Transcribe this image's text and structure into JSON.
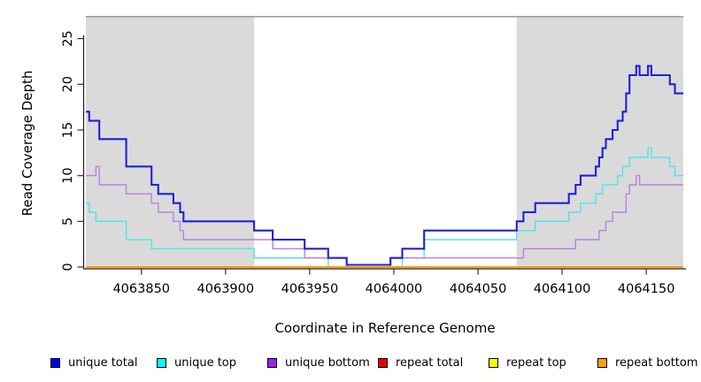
{
  "figure": {
    "x_axis_label": "Coordinate in Reference Genome",
    "y_axis_label": "Read Coverage Depth"
  },
  "legend": {
    "items": [
      {
        "label": "unique total",
        "color": "#0000EE"
      },
      {
        "label": "unique top",
        "color": "#00FFFF"
      },
      {
        "label": "unique bottom",
        "color": "#A020F0"
      },
      {
        "label": "repeat total",
        "color": "#E60000"
      },
      {
        "label": "repeat top",
        "color": "#FFFF00"
      },
      {
        "label": "repeat bottom",
        "color": "#FFA405"
      }
    ]
  },
  "chart_data": {
    "type": "line",
    "subtype": "step",
    "title": "",
    "xlabel": "Coordinate in Reference Genome",
    "ylabel": "Read Coverage Depth",
    "xlim": [
      4063817,
      4064172
    ],
    "ylim": [
      0,
      27.5
    ],
    "x_ticks": [
      4063850,
      4063900,
      4063950,
      4064000,
      4064050,
      4064100,
      4064150
    ],
    "y_ticks": [
      0,
      5,
      10,
      15,
      20,
      25
    ],
    "grid": false,
    "legend_position": "bottom",
    "shaded_regions": [
      {
        "x0": 4063817,
        "x1": 4063917,
        "color": "#DADADA"
      },
      {
        "x0": 4064073,
        "x1": 4064172,
        "color": "#DADADA"
      }
    ],
    "top_line": {
      "y": 27.4,
      "color": "#8E8E8E"
    },
    "series": [
      {
        "name": "unique total",
        "color": "#2020D5",
        "width": 2.1,
        "lift_zero": true,
        "steps": [
          [
            4063817,
            17
          ],
          [
            4063819,
            16
          ],
          [
            4063825,
            14
          ],
          [
            4063841,
            11
          ],
          [
            4063856,
            9
          ],
          [
            4063860,
            8
          ],
          [
            4063869,
            7
          ],
          [
            4063873,
            6
          ],
          [
            4063875,
            5
          ],
          [
            4063917,
            4
          ],
          [
            4063928,
            3
          ],
          [
            4063947,
            2
          ],
          [
            4063961,
            1
          ],
          [
            4063972,
            0
          ],
          [
            4063998,
            1
          ],
          [
            4064005,
            2
          ],
          [
            4064018,
            4
          ],
          [
            4064073,
            5
          ],
          [
            4064077,
            6
          ],
          [
            4064084,
            7
          ],
          [
            4064104,
            8
          ],
          [
            4064108,
            9
          ],
          [
            4064111,
            10
          ],
          [
            4064120,
            11
          ],
          [
            4064122,
            12
          ],
          [
            4064124,
            13
          ],
          [
            4064126,
            14
          ],
          [
            4064130,
            15
          ],
          [
            4064133,
            16
          ],
          [
            4064136,
            17
          ],
          [
            4064138,
            19
          ],
          [
            4064140,
            21
          ],
          [
            4064144,
            22
          ],
          [
            4064146,
            21
          ],
          [
            4064151,
            22
          ],
          [
            4064153,
            21
          ],
          [
            4064164,
            20
          ],
          [
            4064167,
            19
          ]
        ]
      },
      {
        "name": "unique top",
        "color": "#53E4E9",
        "width": 1.5,
        "lift_zero": false,
        "steps": [
          [
            4063817,
            7
          ],
          [
            4063819,
            6
          ],
          [
            4063823,
            5
          ],
          [
            4063841,
            3
          ],
          [
            4063856,
            2
          ],
          [
            4063917,
            1
          ],
          [
            4063961,
            0
          ],
          [
            4064005,
            1
          ],
          [
            4064018,
            3
          ],
          [
            4064073,
            4
          ],
          [
            4064084,
            5
          ],
          [
            4064104,
            6
          ],
          [
            4064111,
            7
          ],
          [
            4064120,
            8
          ],
          [
            4064124,
            9
          ],
          [
            4064133,
            10
          ],
          [
            4064136,
            11
          ],
          [
            4064140,
            12
          ],
          [
            4064151,
            13
          ],
          [
            4064153,
            12
          ],
          [
            4064164,
            11
          ],
          [
            4064167,
            10
          ]
        ]
      },
      {
        "name": "unique bottom",
        "color": "#B77FE3",
        "width": 1.4,
        "lift_zero": false,
        "steps": [
          [
            4063817,
            10
          ],
          [
            4063823,
            11
          ],
          [
            4063825,
            9
          ],
          [
            4063841,
            8
          ],
          [
            4063856,
            7
          ],
          [
            4063860,
            6
          ],
          [
            4063869,
            5
          ],
          [
            4063873,
            4
          ],
          [
            4063875,
            3
          ],
          [
            4063928,
            2
          ],
          [
            4063947,
            1
          ],
          [
            4063972,
            0
          ],
          [
            4063998,
            1
          ],
          [
            4064077,
            2
          ],
          [
            4064108,
            3
          ],
          [
            4064122,
            4
          ],
          [
            4064126,
            5
          ],
          [
            4064130,
            6
          ],
          [
            4064138,
            8
          ],
          [
            4064140,
            9
          ],
          [
            4064144,
            10
          ],
          [
            4064146,
            9
          ]
        ]
      },
      {
        "name": "repeat total",
        "color": "#CC0000",
        "width": 1.5,
        "lift_zero": false,
        "steps": [
          [
            4063817,
            0
          ]
        ]
      },
      {
        "name": "repeat top",
        "color": "#FFFF00",
        "width": 1.5,
        "lift_zero": false,
        "steps": [
          [
            4063817,
            0
          ]
        ]
      },
      {
        "name": "repeat bottom",
        "color": "#FF9800",
        "width": 1.8,
        "lift_zero": false,
        "steps": [
          [
            4063817,
            0
          ]
        ]
      }
    ]
  }
}
